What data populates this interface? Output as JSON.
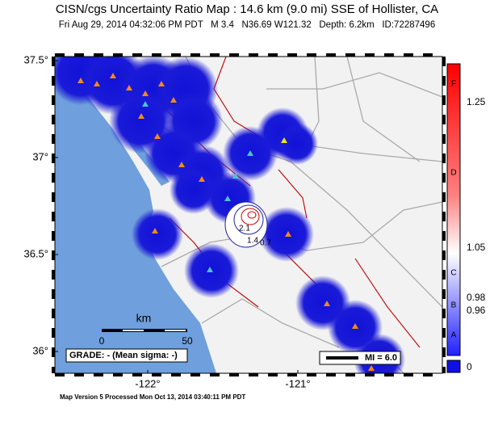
{
  "header": {
    "title": "CISN/cgs Uncertainty Ratio Map : 14.6 km (9.0 mi) SSE of Hollister, CA",
    "subtitle": "Fri Aug 29, 2014 04:32:06 PM PDT   M 3.4   N36.69 W121.32   Depth: 6.2km   ID:72287496"
  },
  "map": {
    "lat_ticks": [
      {
        "value": 37.5,
        "label": "37.5°"
      },
      {
        "value": 37,
        "label": "37°"
      },
      {
        "value": 36.5,
        "label": "36.5°"
      },
      {
        "value": 36,
        "label": "36°"
      }
    ],
    "lon_ticks": [
      {
        "value": -122,
        "label": "-122°"
      },
      {
        "value": -121,
        "label": "-121°"
      }
    ],
    "scale_bar": {
      "unit": "km",
      "start": "0",
      "end": "50"
    },
    "grade": "GRADE: - (Mean sigma: -)",
    "mi_legend": "MI = 6.0",
    "contour_labels": [
      "2.1",
      "1.4",
      "0.7"
    ]
  },
  "colorbar": {
    "grades": [
      "F",
      "D",
      "C",
      "B",
      "A"
    ],
    "values": [
      "1.25",
      "1.05",
      "0.98",
      "0.96"
    ],
    "bottom": "0"
  },
  "footer": "Map Version 5 Processed Mon Oct 13, 2014 03:40:11 PM PDT"
}
